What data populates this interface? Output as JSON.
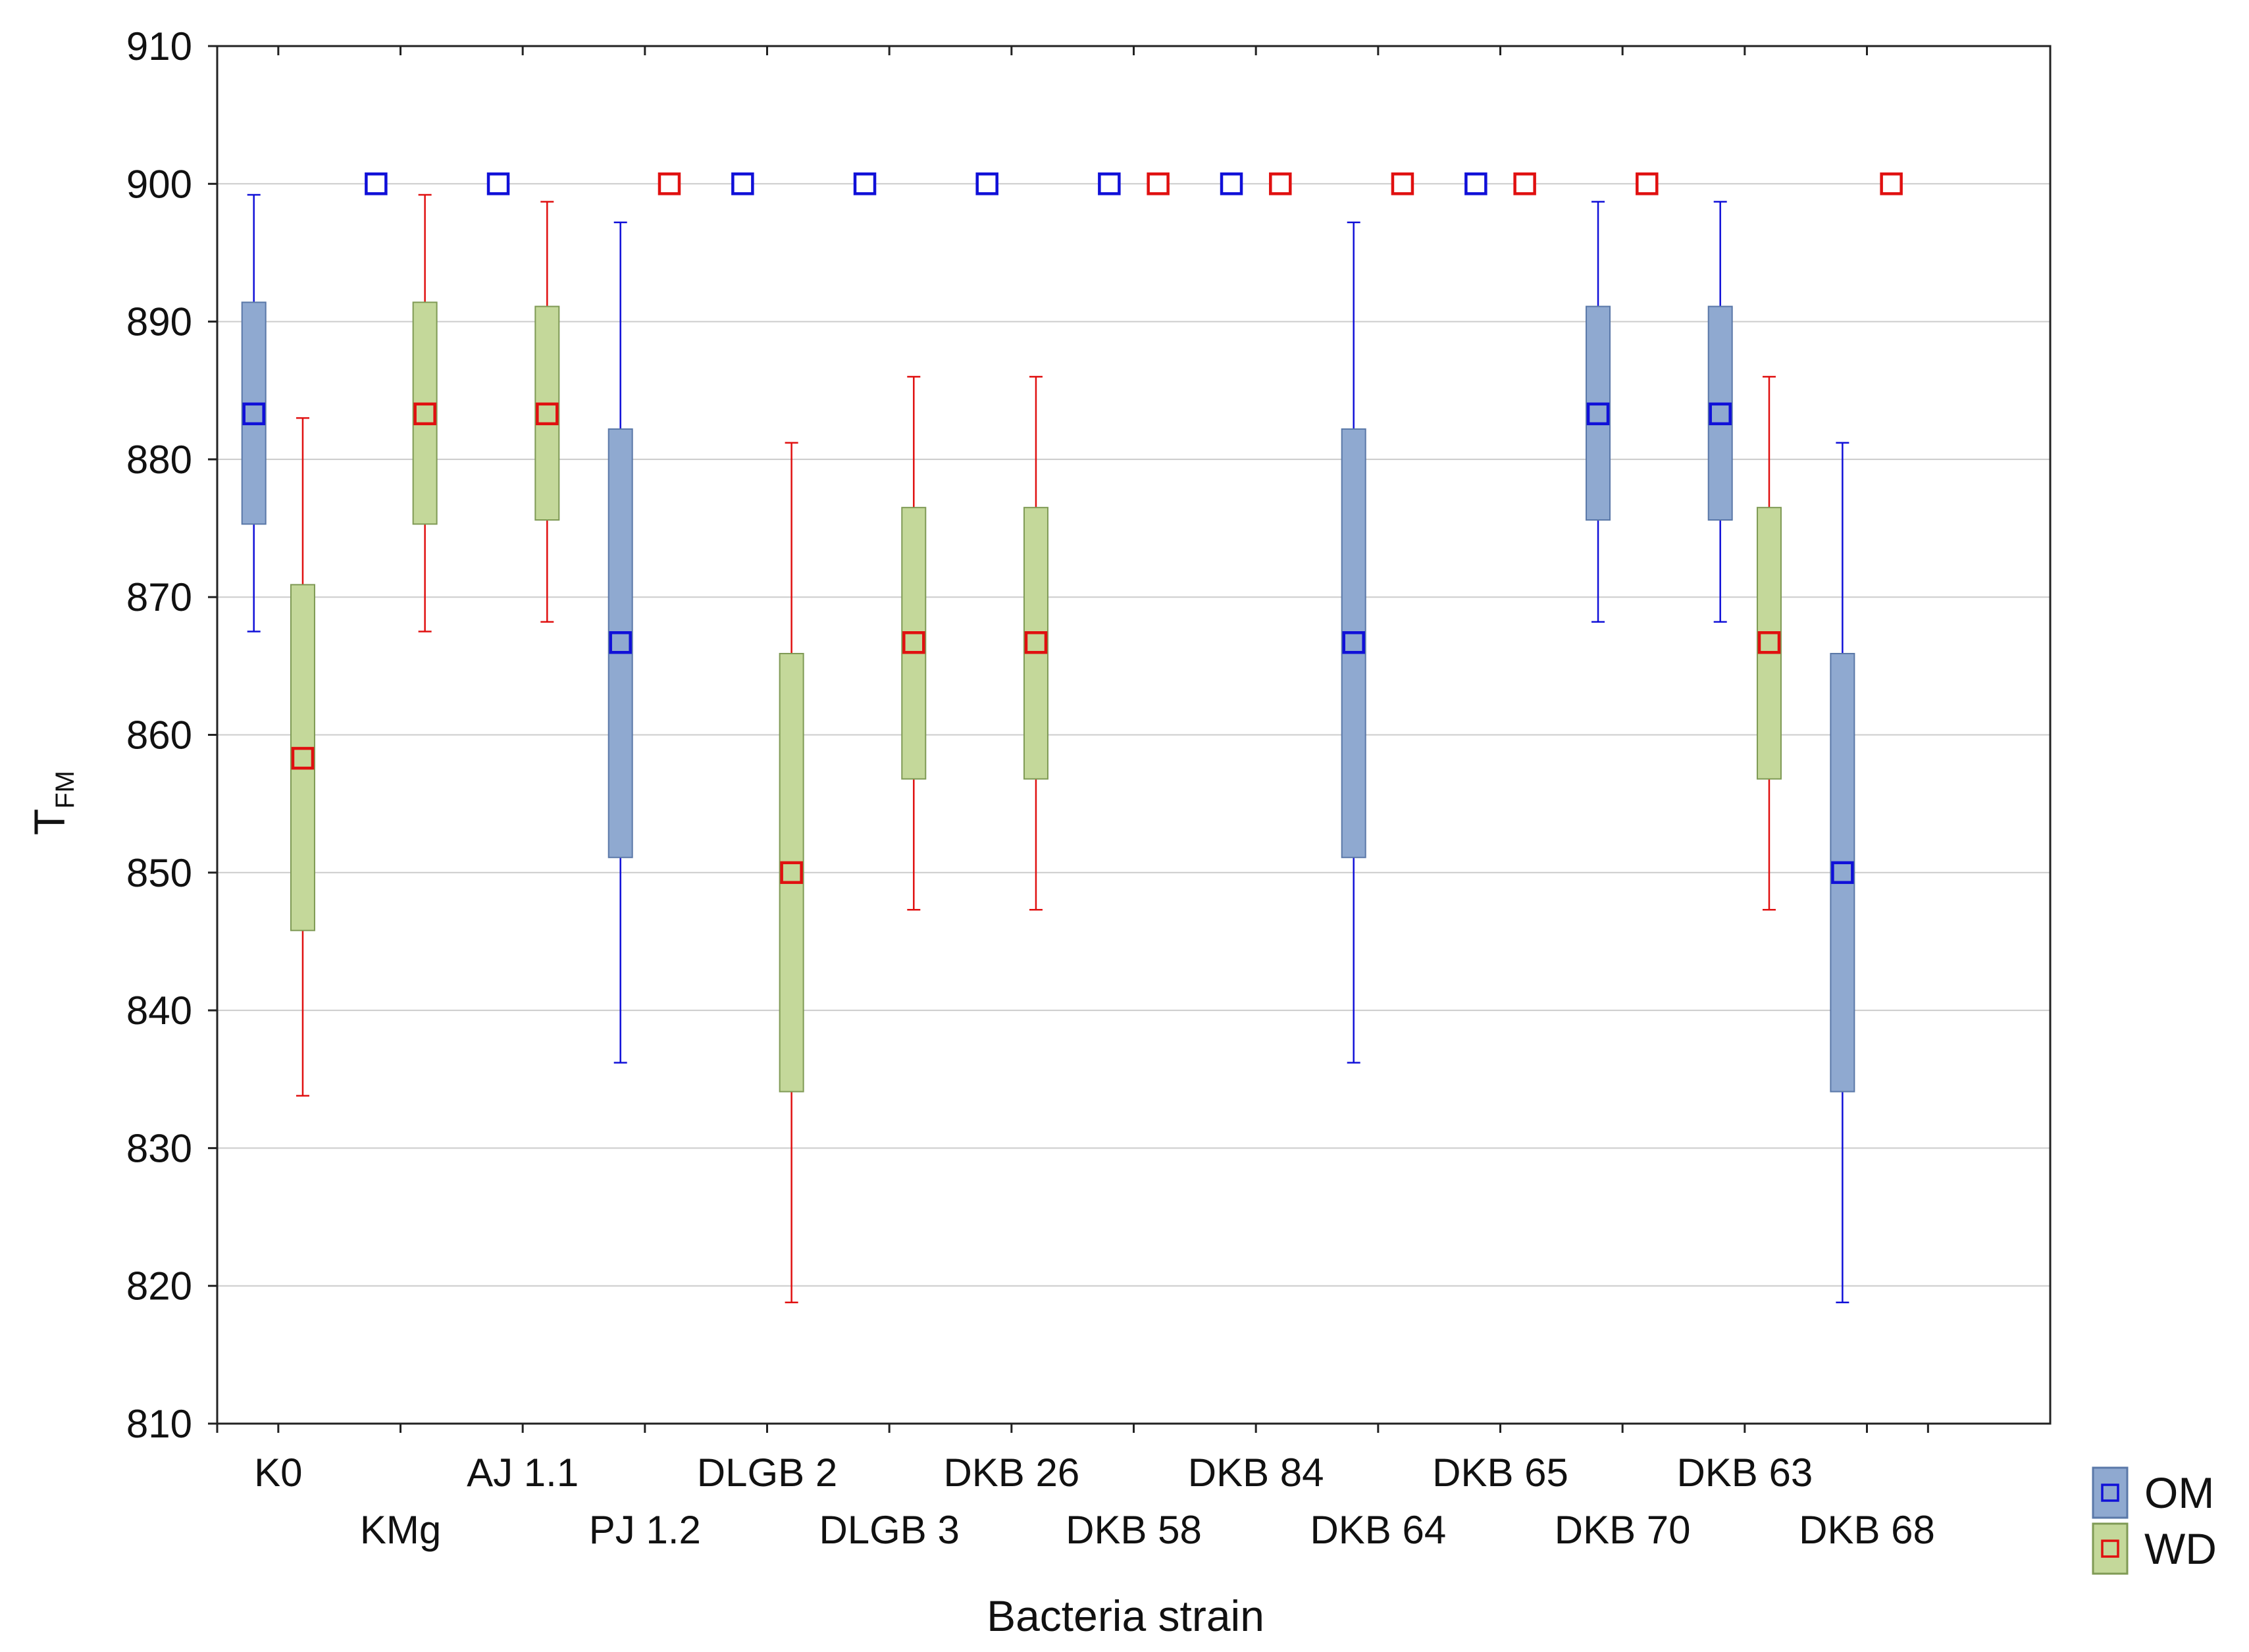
{
  "chart_data": {
    "type": "box",
    "title": "",
    "xlabel": "Bacteria strain",
    "ylabel": {
      "main": "T",
      "subscript": "FM"
    },
    "ylim": [
      810,
      910
    ],
    "yticks": [
      810,
      820,
      830,
      840,
      850,
      860,
      870,
      880,
      890,
      900,
      910
    ],
    "grid": "horizontal",
    "legend_position": "bottom-right",
    "categories": [
      "K0",
      "KMg",
      "AJ 1.1",
      "PJ 1.2",
      "DLGB 2",
      "DLGB 3",
      "DKB 26",
      "DKB 58",
      "DKB 84",
      "DKB 64",
      "DKB 65",
      "DKB 70",
      "DKB 63",
      "DKB 68"
    ],
    "series": [
      {
        "name": "OM",
        "color": "#1010d8",
        "box_fill": "#8fa9d0",
        "box_stroke": "#5a78a8",
        "values": [
          {
            "median": 883.3,
            "q1": 875.3,
            "q3": 891.4,
            "min": 867.5,
            "max": 899.2
          },
          {
            "median": 900.0,
            "q1": 900.0,
            "q3": 900.0,
            "min": 900.0,
            "max": 900.0
          },
          {
            "median": 900.0,
            "q1": 900.0,
            "q3": 900.0,
            "min": 900.0,
            "max": 900.0
          },
          {
            "median": 866.7,
            "q1": 851.1,
            "q3": 882.2,
            "min": 836.2,
            "max": 897.2
          },
          {
            "median": 900.0,
            "q1": 900.0,
            "q3": 900.0,
            "min": 900.0,
            "max": 900.0
          },
          {
            "median": 900.0,
            "q1": 900.0,
            "q3": 900.0,
            "min": 900.0,
            "max": 900.0
          },
          {
            "median": 900.0,
            "q1": 900.0,
            "q3": 900.0,
            "min": 900.0,
            "max": 900.0
          },
          {
            "median": 900.0,
            "q1": 900.0,
            "q3": 900.0,
            "min": 900.0,
            "max": 900.0
          },
          {
            "median": 900.0,
            "q1": 900.0,
            "q3": 900.0,
            "min": 900.0,
            "max": 900.0
          },
          {
            "median": 866.7,
            "q1": 851.1,
            "q3": 882.2,
            "min": 836.2,
            "max": 897.2
          },
          {
            "median": 900.0,
            "q1": 900.0,
            "q3": 900.0,
            "min": 900.0,
            "max": 900.0
          },
          {
            "median": 883.3,
            "q1": 875.6,
            "q3": 891.1,
            "min": 868.2,
            "max": 898.7
          },
          {
            "median": 883.3,
            "q1": 875.6,
            "q3": 891.1,
            "min": 868.2,
            "max": 898.7
          },
          {
            "median": 850.0,
            "q1": 834.1,
            "q3": 865.9,
            "min": 818.8,
            "max": 881.2
          }
        ]
      },
      {
        "name": "WD",
        "color": "#e01010",
        "box_fill": "#c4d89a",
        "box_stroke": "#7f9a55",
        "values": [
          {
            "median": 858.3,
            "q1": 845.8,
            "q3": 870.9,
            "min": 833.8,
            "max": 883.0
          },
          {
            "median": 883.3,
            "q1": 875.3,
            "q3": 891.4,
            "min": 867.5,
            "max": 899.2
          },
          {
            "median": 883.3,
            "q1": 875.6,
            "q3": 891.1,
            "min": 868.2,
            "max": 898.7
          },
          {
            "median": 900.0,
            "q1": 900.0,
            "q3": 900.0,
            "min": 900.0,
            "max": 900.0
          },
          {
            "median": 850.0,
            "q1": 834.1,
            "q3": 865.9,
            "min": 818.8,
            "max": 881.2
          },
          {
            "median": 866.7,
            "q1": 856.8,
            "q3": 876.5,
            "min": 847.3,
            "max": 886.0
          },
          {
            "median": 866.7,
            "q1": 856.8,
            "q3": 876.5,
            "min": 847.3,
            "max": 886.0
          },
          {
            "median": 900.0,
            "q1": 900.0,
            "q3": 900.0,
            "min": 900.0,
            "max": 900.0
          },
          {
            "median": 900.0,
            "q1": 900.0,
            "q3": 900.0,
            "min": 900.0,
            "max": 900.0
          },
          {
            "median": 900.0,
            "q1": 900.0,
            "q3": 900.0,
            "min": 900.0,
            "max": 900.0
          },
          {
            "median": 900.0,
            "q1": 900.0,
            "q3": 900.0,
            "min": 900.0,
            "max": 900.0
          },
          {
            "median": 900.0,
            "q1": 900.0,
            "q3": 900.0,
            "min": 900.0,
            "max": 900.0
          },
          {
            "median": 866.7,
            "q1": 856.8,
            "q3": 876.5,
            "min": 847.3,
            "max": 886.0
          },
          {
            "median": 900.0,
            "q1": 900.0,
            "q3": 900.0,
            "min": 900.0,
            "max": 900.0
          }
        ]
      }
    ]
  }
}
